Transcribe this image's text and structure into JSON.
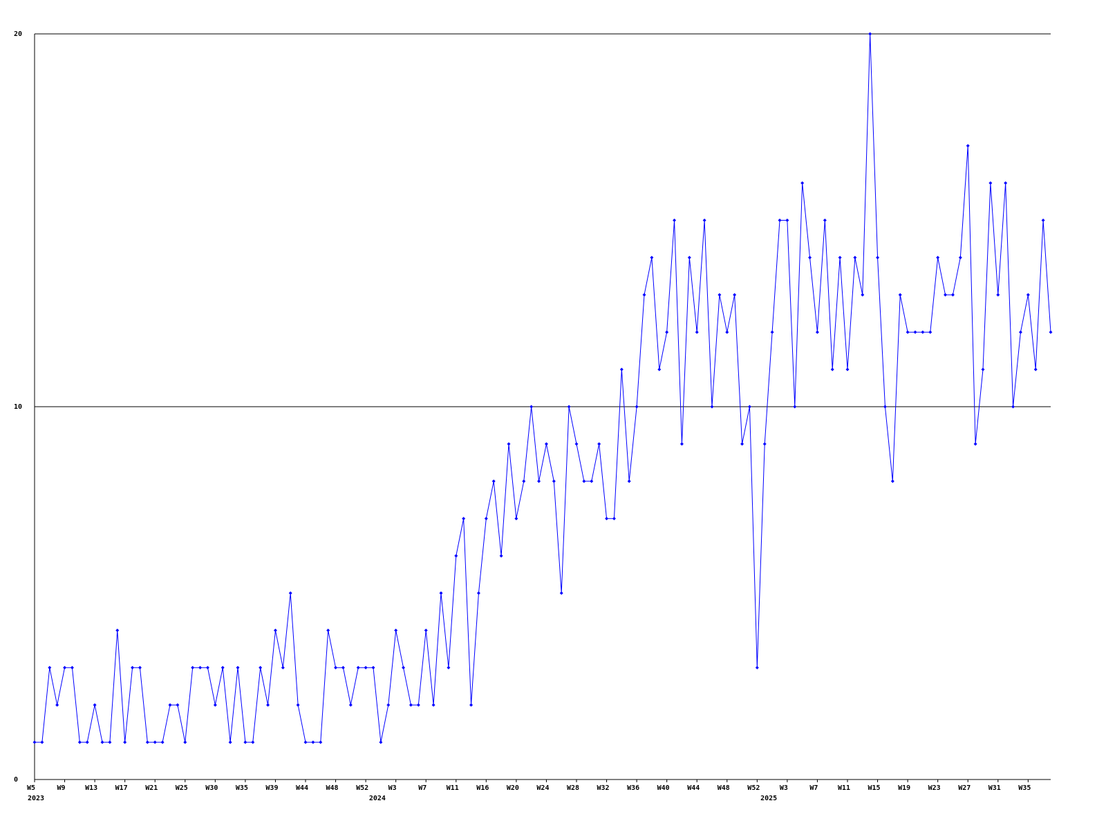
{
  "chart_data": {
    "type": "line",
    "categories": [
      "W5",
      null,
      null,
      null,
      "W9",
      null,
      null,
      null,
      "W13",
      null,
      null,
      null,
      "W17",
      null,
      null,
      null,
      "W21",
      null,
      null,
      null,
      "W25",
      null,
      null,
      null,
      "W30",
      null,
      null,
      null,
      "W35",
      null,
      null,
      null,
      "W39",
      null,
      null,
      null,
      "W44",
      null,
      null,
      null,
      "W48",
      null,
      null,
      null,
      "W52",
      null,
      null,
      null,
      "W3",
      null,
      null,
      null,
      "W7",
      null,
      null,
      null,
      "W11",
      null,
      null,
      null,
      "W16",
      null,
      null,
      null,
      "W20",
      null,
      null,
      null,
      "W24",
      null,
      null,
      null,
      "W28",
      null,
      null,
      null,
      "W32",
      null,
      null,
      null,
      "W36",
      null,
      null,
      null,
      "W40",
      null,
      null,
      null,
      "W44",
      null,
      null,
      null,
      "W48",
      null,
      null,
      null,
      "W52",
      null,
      null,
      null,
      "W3",
      null,
      null,
      null,
      "W7",
      null,
      null,
      null,
      "W11",
      null,
      null,
      null,
      "W15",
      null,
      null,
      null,
      "W19",
      null,
      null,
      null,
      "W23",
      null,
      null,
      null,
      "W27",
      null,
      null,
      null,
      "W31",
      null,
      null,
      null,
      "W35",
      null,
      null,
      null
    ],
    "years": [
      "2023",
      null,
      null,
      null,
      null,
      null,
      null,
      null,
      null,
      null,
      null,
      null,
      null,
      null,
      null,
      null,
      null,
      null,
      null,
      null,
      null,
      null,
      null,
      null,
      null,
      null,
      null,
      null,
      null,
      null,
      null,
      null,
      null,
      null,
      null,
      null,
      null,
      null,
      null,
      null,
      null,
      null,
      null,
      null,
      null,
      null,
      "2024",
      null,
      null,
      null,
      null,
      null,
      null,
      null,
      null,
      null,
      null,
      null,
      null,
      null,
      null,
      null,
      null,
      null,
      null,
      null,
      null,
      null,
      null,
      null,
      null,
      null,
      null,
      null,
      null,
      null,
      null,
      null,
      null,
      null,
      null,
      null,
      null,
      null,
      null,
      null,
      null,
      null,
      null,
      null,
      null,
      null,
      null,
      null,
      null,
      null,
      null,
      null,
      "2025",
      null,
      null,
      null,
      null,
      null,
      null,
      null,
      null,
      null,
      null,
      null,
      null,
      null,
      null,
      null,
      null,
      null,
      null,
      null,
      null,
      null,
      null,
      null,
      null,
      null,
      null,
      null,
      null,
      null,
      null,
      null,
      null,
      null,
      null,
      null,
      null,
      null
    ],
    "values": [
      1,
      1,
      3,
      2,
      3,
      3,
      1,
      1,
      2,
      1,
      1,
      4,
      1,
      3,
      3,
      1,
      1,
      1,
      2,
      2,
      1,
      3,
      3,
      3,
      2,
      3,
      1,
      3,
      1,
      1,
      3,
      2,
      4,
      3,
      5,
      2,
      1,
      1,
      1,
      4,
      3,
      3,
      2,
      3,
      3,
      3,
      1,
      2,
      4,
      3,
      2,
      2,
      4,
      2,
      5,
      3,
      6,
      7,
      2,
      5,
      7,
      8,
      6,
      9,
      7,
      8,
      10,
      8,
      9,
      8,
      5,
      10,
      9,
      8,
      8,
      9,
      7,
      7,
      11,
      8,
      10,
      13,
      14,
      11,
      12,
      15,
      9,
      14,
      12,
      15,
      10,
      13,
      12,
      13,
      9,
      10,
      3,
      9,
      12,
      15,
      15,
      10,
      16,
      14,
      12,
      15,
      11,
      14,
      11,
      14,
      13,
      20,
      14,
      10,
      8,
      13,
      12,
      12,
      12,
      12,
      14,
      13,
      13,
      14,
      17,
      9,
      11,
      16,
      13,
      16,
      10,
      12,
      13,
      11,
      15,
      12
    ],
    "color": "#0000ff",
    "ylim": [
      0,
      20
    ],
    "yticks": [
      0,
      10,
      20
    ],
    "grid": true
  }
}
